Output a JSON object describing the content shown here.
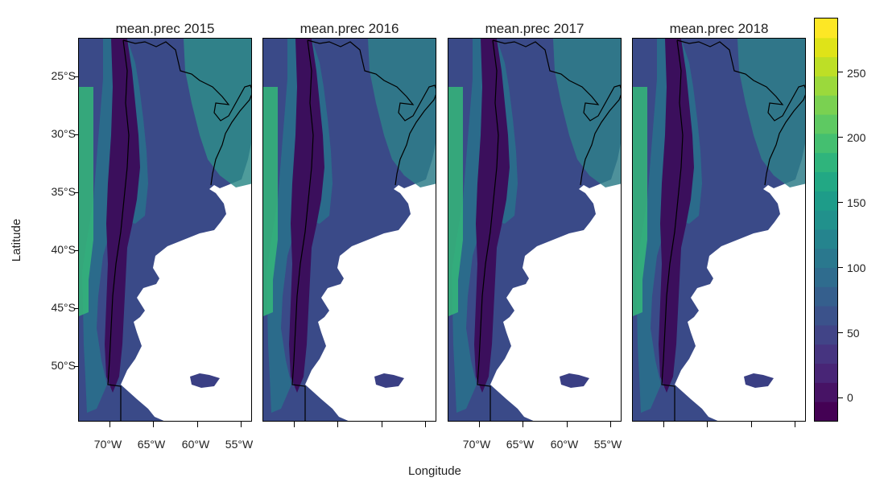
{
  "ylabel": "Latitude",
  "xlabel": "Longitude",
  "panels": [
    {
      "title": "mean.prec  2015"
    },
    {
      "title": "mean.prec  2016"
    },
    {
      "title": "mean.prec  2017"
    },
    {
      "title": "mean.prec  2018"
    }
  ],
  "lat_ticks": [
    "25°S",
    "30°S",
    "35°S",
    "40°S",
    "45°S",
    "50°S"
  ],
  "lon_ticks": [
    "70°W",
    "65°W",
    "60°W",
    "55°W"
  ],
  "colorbar": {
    "labels": [
      "0",
      "50",
      "100",
      "150",
      "200",
      "250"
    ],
    "colors": [
      "#440154",
      "#471365",
      "#482576",
      "#463480",
      "#414487",
      "#3b528b",
      "#355f8d",
      "#2f6c8e",
      "#2a788e",
      "#25848e",
      "#21918c",
      "#1e9c89",
      "#22a884",
      "#2fb47c",
      "#44bf70",
      "#5ec962",
      "#7ad151",
      "#9bd93c",
      "#bddf26",
      "#dfe318",
      "#fde725"
    ]
  },
  "colors": {
    "ocean": "#ffffff",
    "land_low": "#3b0f5c",
    "land_mid": "#3a4a88",
    "land_high": "#2f7e8a",
    "border": "#000000"
  }
}
